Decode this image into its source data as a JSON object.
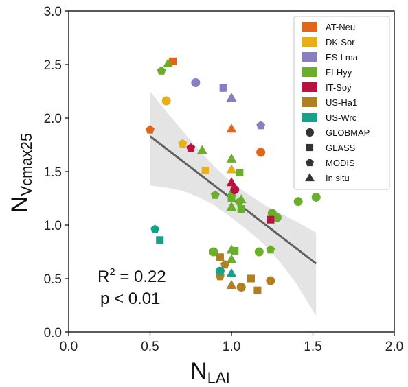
{
  "chart_data": {
    "type": "scatter",
    "xlabel": {
      "main": "N",
      "sub": "LAI"
    },
    "ylabel": {
      "main": "N",
      "sub": "Vcmax25"
    },
    "xlim": [
      0.0,
      2.0
    ],
    "ylim": [
      0.0,
      3.0
    ],
    "xticks": [
      "0.0",
      "0.5",
      "1.0",
      "1.5",
      "2.0"
    ],
    "yticks": [
      "0.0",
      "0.5",
      "1.0",
      "1.5",
      "2.0",
      "2.5",
      "3.0"
    ],
    "xtick_values": [
      0.0,
      0.5,
      1.0,
      1.5,
      2.0
    ],
    "ytick_values": [
      0.0,
      0.5,
      1.0,
      1.5,
      2.0,
      2.5,
      3.0
    ],
    "grid": false,
    "legend_position": "top-right",
    "sites": [
      {
        "name": "AT-Neu",
        "color": "#e0661a"
      },
      {
        "name": "DK-Sor",
        "color": "#e8b016"
      },
      {
        "name": "ES-Lma",
        "color": "#8b7ec0"
      },
      {
        "name": "FI-Hyy",
        "color": "#6aae2c"
      },
      {
        "name": "IT-Soy",
        "color": "#b8123e"
      },
      {
        "name": "US-Ha1",
        "color": "#b07f22"
      },
      {
        "name": "US-Wrc",
        "color": "#1aa088"
      }
    ],
    "products": [
      {
        "name": "GLOBMAP",
        "shape": "circle"
      },
      {
        "name": "GLASS",
        "shape": "square"
      },
      {
        "name": "MODIS",
        "shape": "pentagon"
      },
      {
        "name": "In situ",
        "shape": "triangle"
      }
    ],
    "points": [
      {
        "x": 0.5,
        "y": 1.89,
        "site": "AT-Neu",
        "product": "MODIS"
      },
      {
        "x": 0.64,
        "y": 2.53,
        "site": "AT-Neu",
        "product": "GLASS"
      },
      {
        "x": 1.0,
        "y": 1.9,
        "site": "AT-Neu",
        "product": "In situ"
      },
      {
        "x": 1.18,
        "y": 1.68,
        "site": "AT-Neu",
        "product": "GLOBMAP"
      },
      {
        "x": 0.6,
        "y": 2.16,
        "site": "DK-Sor",
        "product": "GLOBMAP"
      },
      {
        "x": 0.7,
        "y": 1.76,
        "site": "DK-Sor",
        "product": "MODIS"
      },
      {
        "x": 0.84,
        "y": 1.51,
        "site": "DK-Sor",
        "product": "GLASS"
      },
      {
        "x": 1.0,
        "y": 1.52,
        "site": "DK-Sor",
        "product": "In situ"
      },
      {
        "x": 0.78,
        "y": 2.33,
        "site": "ES-Lma",
        "product": "GLOBMAP"
      },
      {
        "x": 0.95,
        "y": 2.28,
        "site": "ES-Lma",
        "product": "GLASS"
      },
      {
        "x": 1.0,
        "y": 2.19,
        "site": "ES-Lma",
        "product": "In situ"
      },
      {
        "x": 1.18,
        "y": 1.93,
        "site": "ES-Lma",
        "product": "MODIS"
      },
      {
        "x": 0.57,
        "y": 2.44,
        "site": "FI-Hyy",
        "product": "MODIS"
      },
      {
        "x": 0.61,
        "y": 2.51,
        "site": "FI-Hyy",
        "product": "In situ"
      },
      {
        "x": 0.82,
        "y": 1.7,
        "site": "FI-Hyy",
        "product": "In situ"
      },
      {
        "x": 0.9,
        "y": 1.28,
        "site": "FI-Hyy",
        "product": "MODIS"
      },
      {
        "x": 1.0,
        "y": 1.62,
        "site": "FI-Hyy",
        "product": "In situ"
      },
      {
        "x": 1.0,
        "y": 1.3,
        "site": "FI-Hyy",
        "product": "In situ"
      },
      {
        "x": 1.0,
        "y": 1.25,
        "site": "FI-Hyy",
        "product": "GLASS"
      },
      {
        "x": 1.0,
        "y": 1.17,
        "site": "FI-Hyy",
        "product": "In situ"
      },
      {
        "x": 1.05,
        "y": 1.49,
        "site": "FI-Hyy",
        "product": "GLASS"
      },
      {
        "x": 1.05,
        "y": 1.22,
        "site": "FI-Hyy",
        "product": "MODIS"
      },
      {
        "x": 1.06,
        "y": 1.15,
        "site": "FI-Hyy",
        "product": "GLASS"
      },
      {
        "x": 1.06,
        "y": 1.24,
        "site": "FI-Hyy",
        "product": "In situ"
      },
      {
        "x": 1.25,
        "y": 1.11,
        "site": "FI-Hyy",
        "product": "GLOBMAP"
      },
      {
        "x": 1.28,
        "y": 1.07,
        "site": "FI-Hyy",
        "product": "GLOBMAP"
      },
      {
        "x": 1.41,
        "y": 1.22,
        "site": "FI-Hyy",
        "product": "GLOBMAP"
      },
      {
        "x": 1.52,
        "y": 1.26,
        "site": "FI-Hyy",
        "product": "GLOBMAP"
      },
      {
        "x": 0.89,
        "y": 0.75,
        "site": "FI-Hyy",
        "product": "GLOBMAP"
      },
      {
        "x": 1.0,
        "y": 0.77,
        "site": "FI-Hyy",
        "product": "In situ"
      },
      {
        "x": 1.02,
        "y": 0.76,
        "site": "FI-Hyy",
        "product": "GLASS"
      },
      {
        "x": 1.0,
        "y": 0.68,
        "site": "FI-Hyy",
        "product": "In situ"
      },
      {
        "x": 1.17,
        "y": 0.75,
        "site": "FI-Hyy",
        "product": "GLOBMAP"
      },
      {
        "x": 1.24,
        "y": 0.77,
        "site": "FI-Hyy",
        "product": "MODIS"
      },
      {
        "x": 0.75,
        "y": 1.72,
        "site": "IT-Soy",
        "product": "MODIS"
      },
      {
        "x": 1.0,
        "y": 1.4,
        "site": "IT-Soy",
        "product": "In situ"
      },
      {
        "x": 1.02,
        "y": 1.33,
        "site": "IT-Soy",
        "product": "GLOBMAP"
      },
      {
        "x": 1.24,
        "y": 1.05,
        "site": "IT-Soy",
        "product": "GLASS"
      },
      {
        "x": 0.93,
        "y": 0.7,
        "site": "US-Ha1",
        "product": "GLASS"
      },
      {
        "x": 0.93,
        "y": 0.52,
        "site": "US-Ha1",
        "product": "MODIS"
      },
      {
        "x": 0.96,
        "y": 0.63,
        "site": "US-Ha1",
        "product": "MODIS"
      },
      {
        "x": 1.0,
        "y": 0.44,
        "site": "US-Ha1",
        "product": "In situ"
      },
      {
        "x": 1.06,
        "y": 0.42,
        "site": "US-Ha1",
        "product": "GLOBMAP"
      },
      {
        "x": 1.12,
        "y": 0.5,
        "site": "US-Ha1",
        "product": "GLASS"
      },
      {
        "x": 1.16,
        "y": 0.39,
        "site": "US-Ha1",
        "product": "GLASS"
      },
      {
        "x": 1.24,
        "y": 0.48,
        "site": "US-Ha1",
        "product": "GLOBMAP"
      },
      {
        "x": 0.53,
        "y": 0.96,
        "site": "US-Wrc",
        "product": "MODIS"
      },
      {
        "x": 0.56,
        "y": 0.86,
        "site": "US-Wrc",
        "product": "GLASS"
      },
      {
        "x": 0.93,
        "y": 0.57,
        "site": "US-Wrc",
        "product": "GLOBMAP"
      },
      {
        "x": 1.0,
        "y": 0.55,
        "site": "US-Wrc",
        "product": "In situ"
      }
    ],
    "regression": {
      "x": [
        0.5,
        1.52
      ],
      "y": [
        1.83,
        0.64
      ],
      "color": "#606060"
    },
    "confidence_band": {
      "x": [
        0.5,
        0.6,
        0.7,
        0.8,
        0.9,
        1.0,
        1.1,
        1.2,
        1.3,
        1.4,
        1.52
      ],
      "upper": [
        2.25,
        2.06,
        1.88,
        1.7,
        1.54,
        1.4,
        1.29,
        1.19,
        1.11,
        1.03,
        0.93
      ],
      "lower": [
        1.37,
        1.35,
        1.32,
        1.26,
        1.18,
        1.07,
        0.95,
        0.82,
        0.65,
        0.45,
        0.15
      ],
      "color": "#e4e4e4"
    },
    "annotation": {
      "r2_prefix": "R",
      "r2_sup": "2",
      "r2_value": " = 0.22",
      "p_text": "p < 0.01"
    },
    "legend_patch_color": "#333333"
  }
}
